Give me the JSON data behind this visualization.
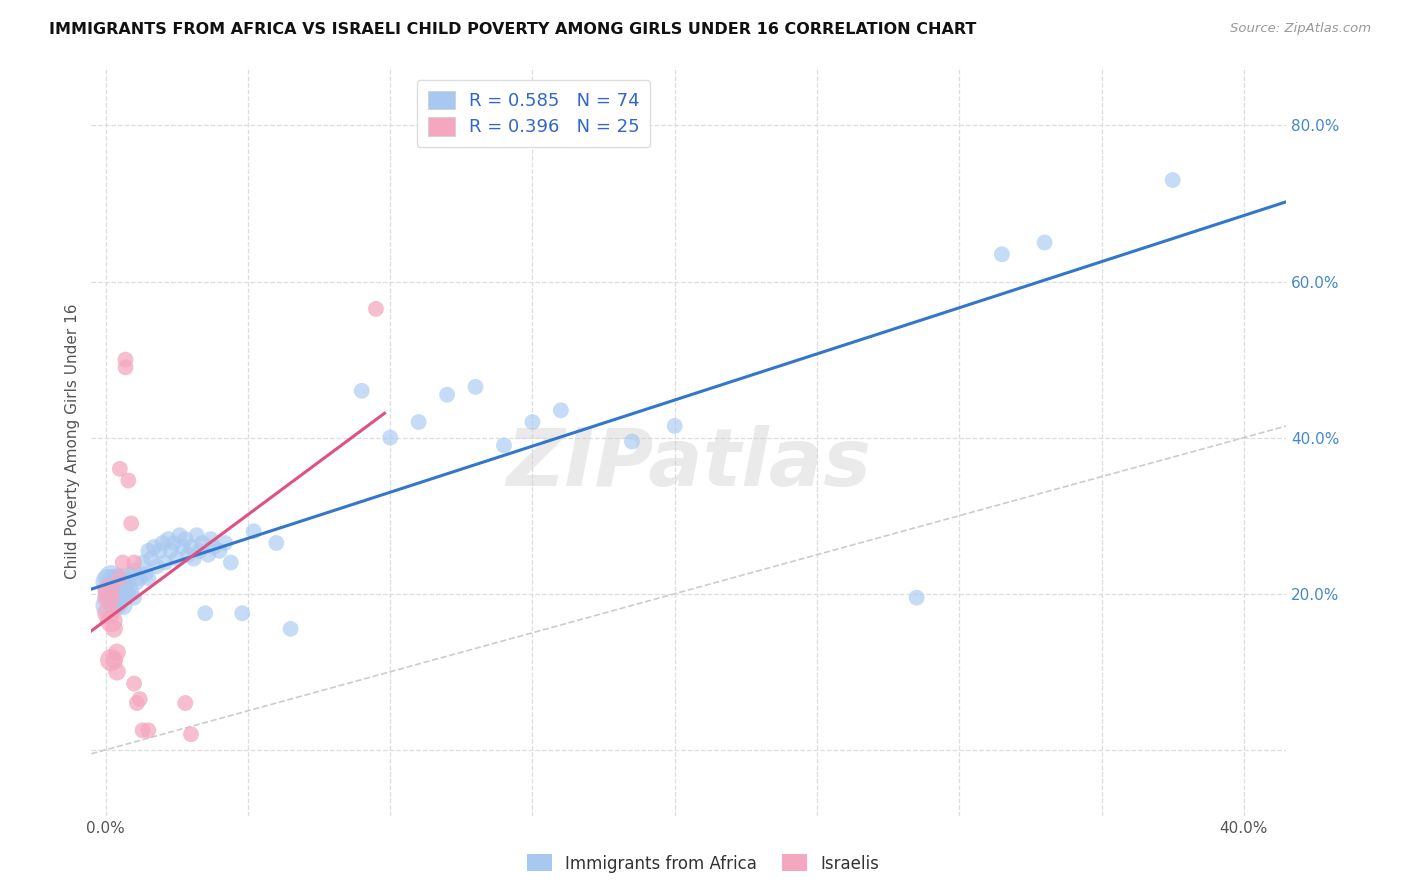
{
  "title": "IMMIGRANTS FROM AFRICA VS ISRAELI CHILD POVERTY AMONG GIRLS UNDER 16 CORRELATION CHART",
  "source": "Source: ZipAtlas.com",
  "ylabel": "Child Poverty Among Girls Under 16",
  "xlim": [
    -0.005,
    0.415
  ],
  "ylim": [
    -0.085,
    0.875
  ],
  "xtick_positions": [
    0.0,
    0.05,
    0.1,
    0.15,
    0.2,
    0.25,
    0.3,
    0.35,
    0.4
  ],
  "xticklabels": [
    "0.0%",
    "",
    "",
    "",
    "",
    "",
    "",
    "",
    "40.0%"
  ],
  "ytick_positions": [
    0.0,
    0.2,
    0.4,
    0.6,
    0.8
  ],
  "yticklabels": [
    "",
    "20.0%",
    "40.0%",
    "60.0%",
    "80.0%"
  ],
  "blue_R": "0.585",
  "blue_N": "74",
  "pink_R": "0.396",
  "pink_N": "25",
  "blue_color": "#a8c8f0",
  "pink_color": "#f4a8c0",
  "trend_blue": "#3377cc",
  "trend_pink": "#e05080",
  "grid_color": "#dddddd",
  "diag_color": "#cccccc",
  "watermark": "ZIPatlas",
  "legend_label_blue": "Immigrants from Africa",
  "legend_label_pink": "Israelis",
  "blue_points_x": [
    0.001,
    0.001,
    0.002,
    0.002,
    0.003,
    0.003,
    0.003,
    0.004,
    0.004,
    0.004,
    0.005,
    0.005,
    0.005,
    0.006,
    0.006,
    0.006,
    0.007,
    0.007,
    0.008,
    0.008,
    0.009,
    0.009,
    0.01,
    0.01,
    0.011,
    0.012,
    0.013,
    0.014,
    0.015,
    0.015,
    0.016,
    0.017,
    0.018,
    0.019,
    0.02,
    0.021,
    0.022,
    0.023,
    0.024,
    0.025,
    0.026,
    0.027,
    0.028,
    0.029,
    0.03,
    0.031,
    0.032,
    0.033,
    0.034,
    0.035,
    0.036,
    0.037,
    0.038,
    0.04,
    0.042,
    0.044,
    0.048,
    0.052,
    0.06,
    0.065,
    0.09,
    0.1,
    0.11,
    0.12,
    0.13,
    0.14,
    0.15,
    0.16,
    0.185,
    0.2,
    0.285,
    0.315,
    0.33,
    0.375
  ],
  "blue_points_y": [
    0.215,
    0.185,
    0.22,
    0.2,
    0.195,
    0.215,
    0.19,
    0.22,
    0.205,
    0.185,
    0.21,
    0.195,
    0.215,
    0.2,
    0.22,
    0.185,
    0.21,
    0.195,
    0.215,
    0.2,
    0.225,
    0.205,
    0.23,
    0.195,
    0.215,
    0.22,
    0.24,
    0.225,
    0.255,
    0.22,
    0.245,
    0.26,
    0.235,
    0.255,
    0.265,
    0.24,
    0.27,
    0.255,
    0.265,
    0.245,
    0.275,
    0.26,
    0.27,
    0.25,
    0.26,
    0.245,
    0.275,
    0.255,
    0.265,
    0.175,
    0.25,
    0.27,
    0.26,
    0.255,
    0.265,
    0.24,
    0.175,
    0.28,
    0.265,
    0.155,
    0.46,
    0.4,
    0.42,
    0.455,
    0.465,
    0.39,
    0.42,
    0.435,
    0.395,
    0.415,
    0.195,
    0.635,
    0.65,
    0.73
  ],
  "pink_points_x": [
    0.001,
    0.001,
    0.001,
    0.002,
    0.002,
    0.003,
    0.003,
    0.004,
    0.004,
    0.005,
    0.005,
    0.006,
    0.007,
    0.007,
    0.008,
    0.009,
    0.01,
    0.01,
    0.011,
    0.012,
    0.013,
    0.015,
    0.028,
    0.03,
    0.095
  ],
  "pink_points_y": [
    0.205,
    0.195,
    0.175,
    0.165,
    0.115,
    0.155,
    0.115,
    0.1,
    0.125,
    0.36,
    0.22,
    0.24,
    0.49,
    0.5,
    0.345,
    0.29,
    0.24,
    0.085,
    0.06,
    0.065,
    0.025,
    0.025,
    0.06,
    0.02,
    0.565
  ]
}
